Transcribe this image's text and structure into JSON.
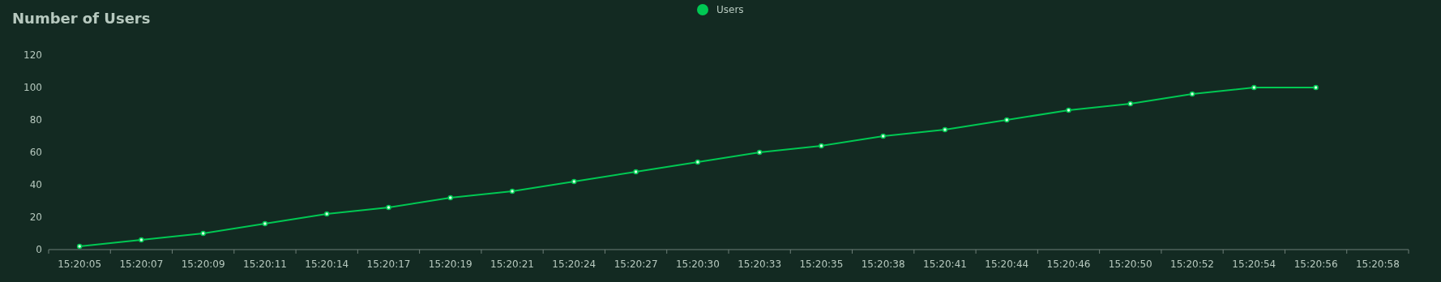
{
  "chart_data": {
    "type": "line",
    "title": "Number of Users",
    "categories": [
      "15:20:05",
      "15:20:07",
      "15:20:09",
      "15:20:11",
      "15:20:14",
      "15:20:17",
      "15:20:19",
      "15:20:21",
      "15:20:24",
      "15:20:27",
      "15:20:30",
      "15:20:33",
      "15:20:35",
      "15:20:38",
      "15:20:41",
      "15:20:44",
      "15:20:46",
      "15:20:50",
      "15:20:52",
      "15:20:54",
      "15:20:56",
      "15:20:58"
    ],
    "series": [
      {
        "name": "Users",
        "color": "#00c853",
        "values": [
          2,
          6,
          10,
          16,
          22,
          26,
          32,
          36,
          42,
          48,
          54,
          60,
          64,
          70,
          74,
          80,
          86,
          90,
          96,
          100,
          100,
          null
        ]
      }
    ],
    "ylim": [
      0,
      120
    ],
    "yticks": [
      0,
      20,
      40,
      60,
      80,
      100,
      120
    ],
    "grid": false,
    "legend": "top",
    "marker": "circle",
    "line_style": "solid"
  }
}
